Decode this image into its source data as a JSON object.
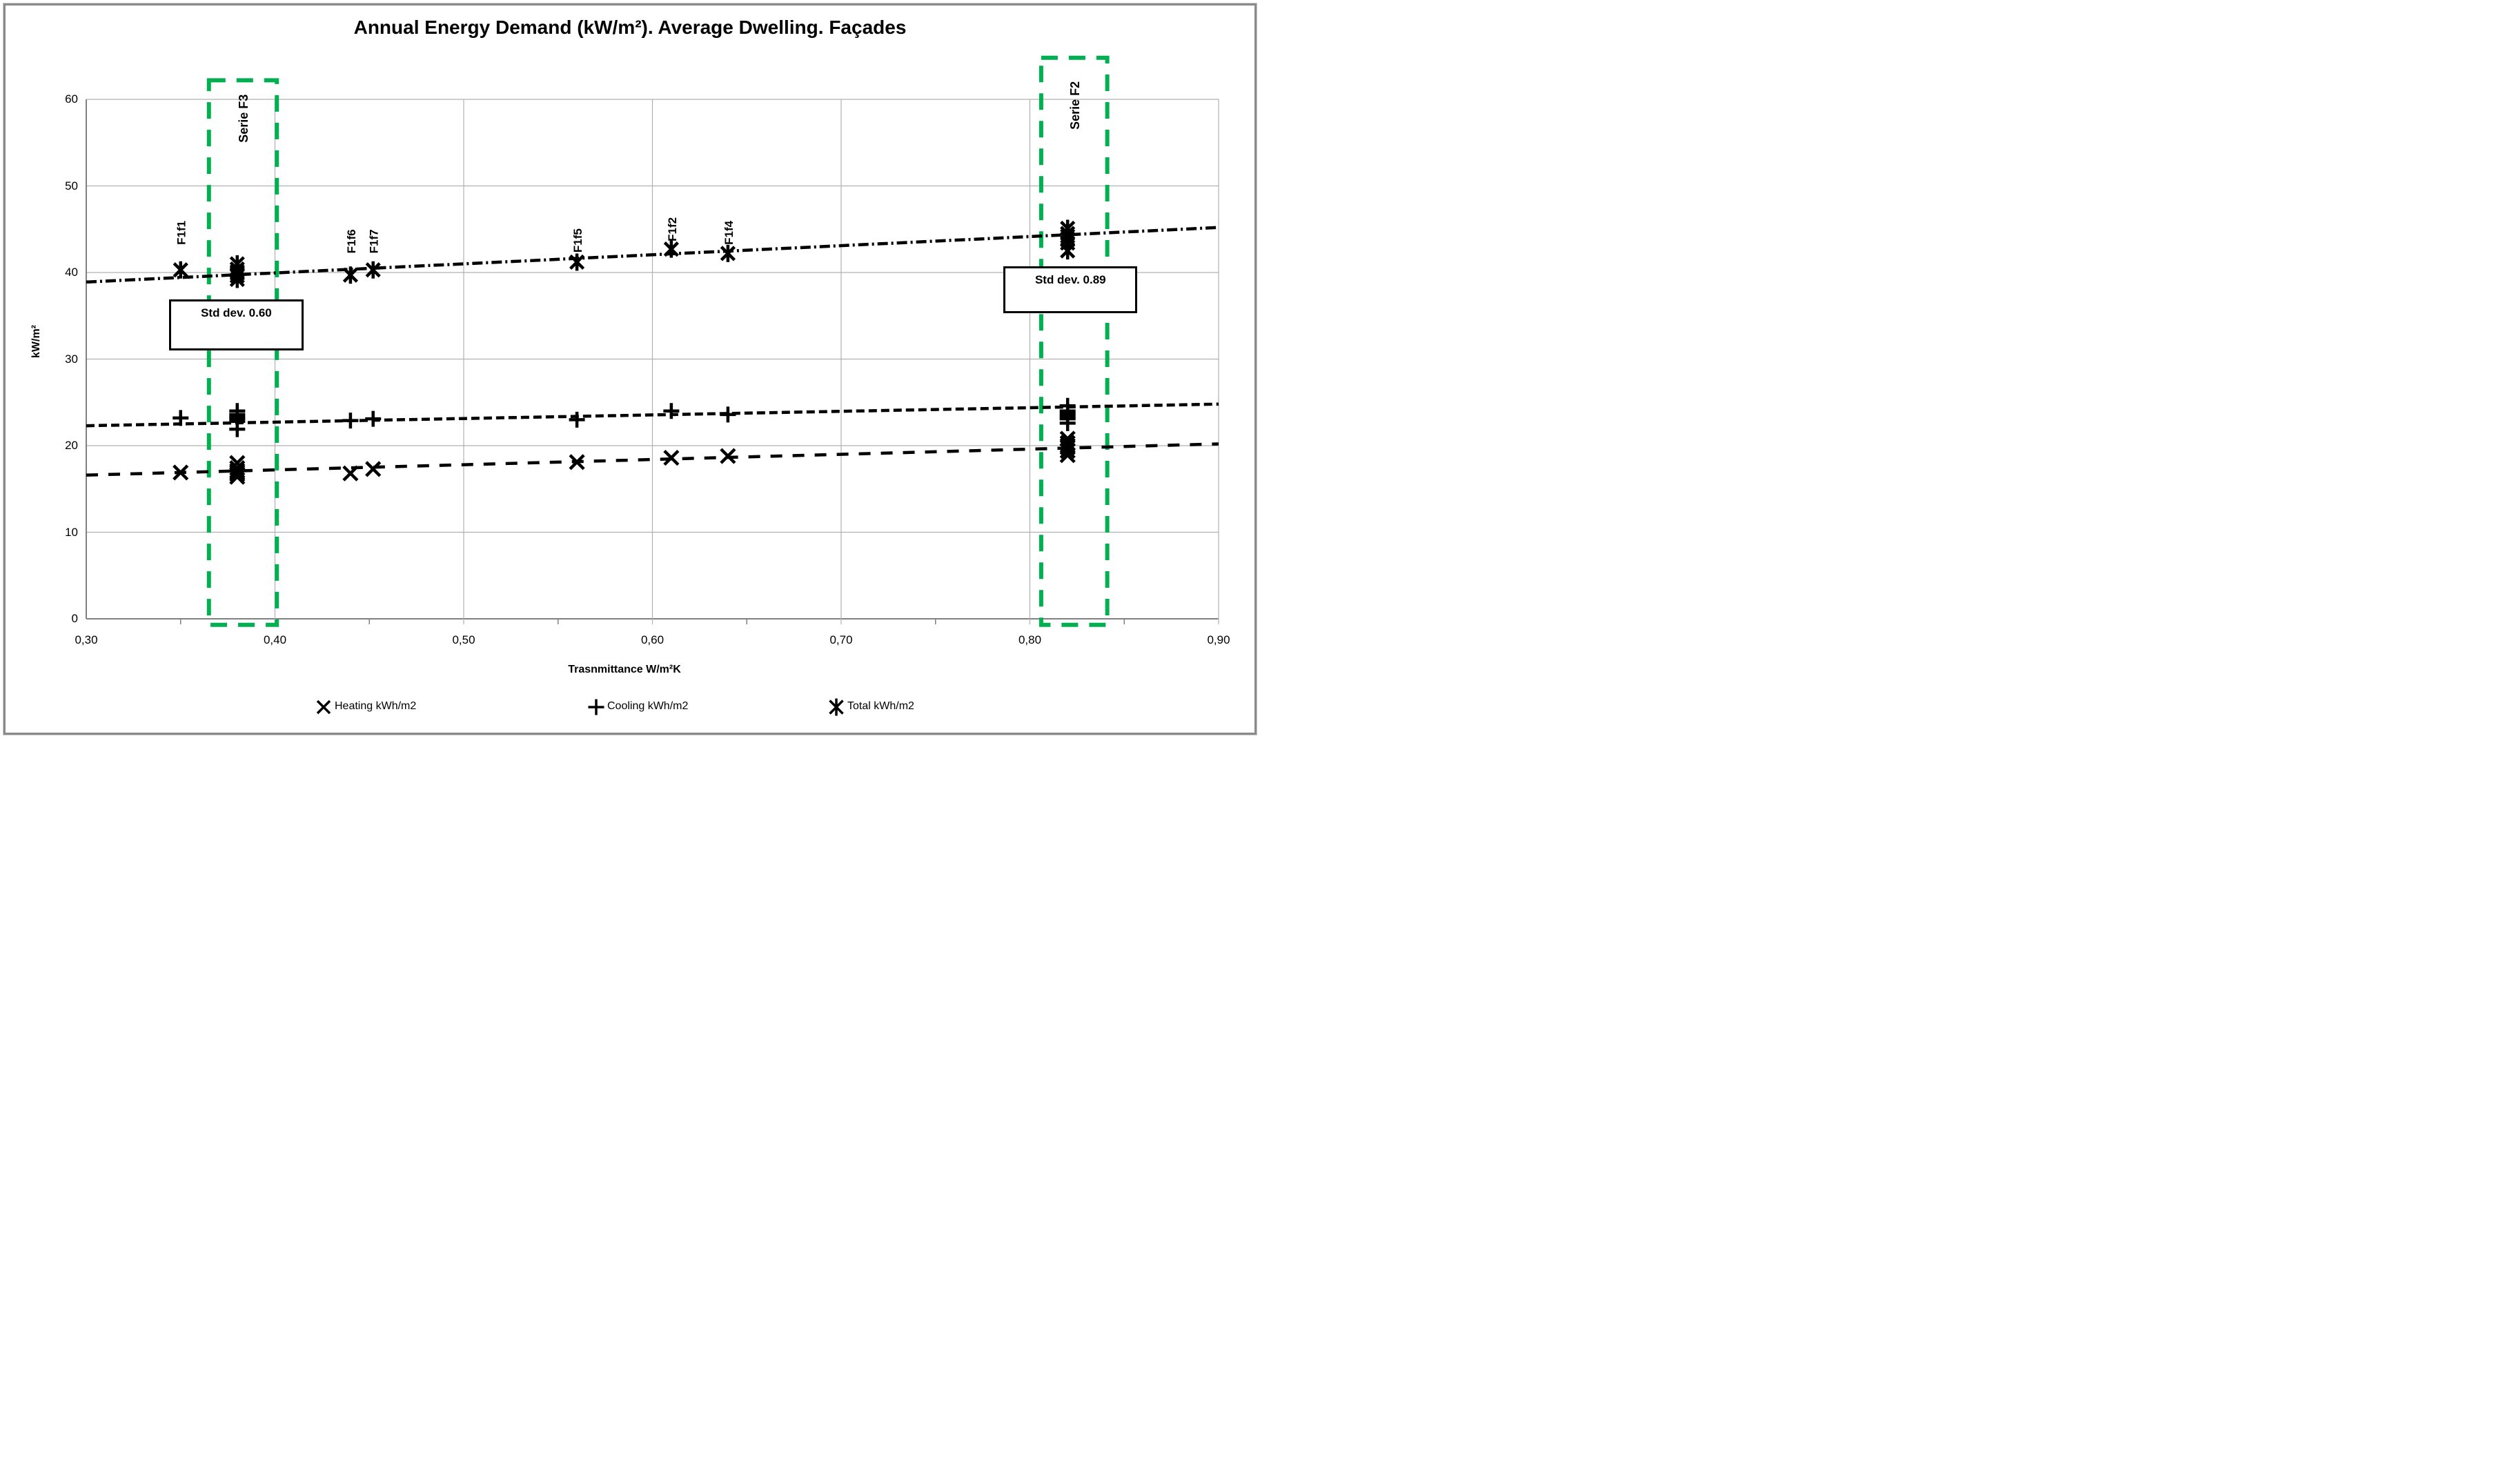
{
  "colors": {
    "marker": "#000000",
    "grid_minor": "#b0b0b0",
    "axis": "#808080",
    "accent_green": "#00B050",
    "frame": "#8a8a8a"
  },
  "chart_data": {
    "type": "scatter",
    "title": "Annual Energy Demand (kW/m²). Average Dwelling. Façades",
    "xlabel": "Trasnmittance W/m²K",
    "ylabel": "kW/m²",
    "xlim": [
      0.3,
      0.9
    ],
    "ylim": [
      0,
      60
    ],
    "grid": true,
    "legend_position": "bottom",
    "x_ticks": [
      {
        "v": 0.3,
        "label": "0,30"
      },
      {
        "v": 0.4,
        "label": "0,40"
      },
      {
        "v": 0.5,
        "label": "0,50"
      },
      {
        "v": 0.6,
        "label": "0,60"
      },
      {
        "v": 0.7,
        "label": "0,70"
      },
      {
        "v": 0.8,
        "label": "0,80"
      },
      {
        "v": 0.9,
        "label": "0,90"
      }
    ],
    "x_minor_ticks": [
      0.35,
      0.45,
      0.55,
      0.65,
      0.75,
      0.85
    ],
    "y_ticks": [
      {
        "v": 0,
        "label": "0"
      },
      {
        "v": 10,
        "label": "10"
      },
      {
        "v": 20,
        "label": "20"
      },
      {
        "v": 30,
        "label": "30"
      },
      {
        "v": 40,
        "label": "40"
      },
      {
        "v": 50,
        "label": "50"
      },
      {
        "v": 60,
        "label": "60"
      }
    ],
    "series": [
      {
        "name": "Heating kWh/m2",
        "marker": "x",
        "points": [
          [
            0.35,
            16.9
          ],
          [
            0.38,
            18.0
          ],
          [
            0.38,
            17.4
          ],
          [
            0.38,
            17.1
          ],
          [
            0.38,
            16.9
          ],
          [
            0.38,
            16.7
          ],
          [
            0.38,
            16.4
          ],
          [
            0.44,
            16.8
          ],
          [
            0.452,
            17.3
          ],
          [
            0.56,
            18.1
          ],
          [
            0.61,
            18.6
          ],
          [
            0.64,
            18.8
          ],
          [
            0.82,
            20.8
          ],
          [
            0.82,
            20.3
          ],
          [
            0.82,
            20.0
          ],
          [
            0.82,
            19.8
          ],
          [
            0.82,
            19.4
          ],
          [
            0.82,
            18.9
          ]
        ],
        "trend": {
          "start": [
            0.3,
            16.6
          ],
          "end": [
            0.9,
            20.2
          ],
          "style": "long-dash"
        }
      },
      {
        "name": "Cooling kWh/m2",
        "marker": "plus",
        "points": [
          [
            0.35,
            23.2
          ],
          [
            0.38,
            24.0
          ],
          [
            0.38,
            23.6
          ],
          [
            0.38,
            23.3
          ],
          [
            0.38,
            23.1
          ],
          [
            0.38,
            22.8
          ],
          [
            0.38,
            21.9
          ],
          [
            0.44,
            22.9
          ],
          [
            0.452,
            23.1
          ],
          [
            0.56,
            23.0
          ],
          [
            0.61,
            24.0
          ],
          [
            0.64,
            23.6
          ],
          [
            0.82,
            24.6
          ],
          [
            0.82,
            24.0
          ],
          [
            0.82,
            23.7
          ],
          [
            0.82,
            23.4
          ],
          [
            0.82,
            23.1
          ],
          [
            0.82,
            22.6
          ]
        ],
        "trend": {
          "start": [
            0.3,
            22.3
          ],
          "end": [
            0.9,
            24.8
          ],
          "style": "dash"
        }
      },
      {
        "name": "Total kWh/m2",
        "marker": "star",
        "points": [
          [
            0.35,
            40.3
          ],
          [
            0.38,
            41.0
          ],
          [
            0.38,
            40.4
          ],
          [
            0.38,
            40.1
          ],
          [
            0.38,
            39.9
          ],
          [
            0.38,
            39.6
          ],
          [
            0.38,
            39.2
          ],
          [
            0.44,
            39.7
          ],
          [
            0.452,
            40.3
          ],
          [
            0.56,
            41.2
          ],
          [
            0.61,
            42.7
          ],
          [
            0.64,
            42.2
          ],
          [
            0.82,
            45.1
          ],
          [
            0.82,
            44.5
          ],
          [
            0.82,
            44.2
          ],
          [
            0.82,
            43.9
          ],
          [
            0.82,
            43.4
          ],
          [
            0.82,
            42.5
          ]
        ],
        "trend": {
          "start": [
            0.3,
            38.9
          ],
          "end": [
            0.9,
            45.2
          ],
          "style": "dash-dot"
        }
      }
    ],
    "point_labels": [
      {
        "text": "F1f1",
        "x": 0.35,
        "y_bottom": 43.2
      },
      {
        "text": "F1f6",
        "x": 0.44,
        "y_bottom": 42.2
      },
      {
        "text": "F1f7",
        "x": 0.452,
        "y_bottom": 42.2
      },
      {
        "text": "F1f5",
        "x": 0.56,
        "y_bottom": 42.3
      },
      {
        "text": "F1f2",
        "x": 0.61,
        "y_bottom": 43.6
      },
      {
        "text": "F1f4",
        "x": 0.64,
        "y_bottom": 43.2
      }
    ],
    "series_boxes": [
      {
        "label": "Serie F3",
        "x_range": [
          0.365,
          0.401
        ],
        "y_range": [
          -0.7,
          62.2
        ],
        "label_y_bottom": 55.0
      },
      {
        "label": "Serie F2",
        "x_range": [
          0.806,
          0.841
        ],
        "y_range": [
          -0.7,
          64.8
        ],
        "label_y_bottom": 56.5
      }
    ],
    "stddev_boxes": [
      {
        "text": "Std dev. 0.60",
        "x_range": [
          0.344,
          0.415
        ],
        "y_range": [
          31.0,
          36.9
        ]
      },
      {
        "text": "Std dev. 0.89",
        "x_range": [
          0.786,
          0.857
        ],
        "y_range": [
          35.3,
          40.7
        ]
      }
    ]
  },
  "legend": {
    "items": [
      {
        "label": "Heating kWh/m2",
        "marker": "x"
      },
      {
        "label": "Cooling kWh/m2",
        "marker": "plus"
      },
      {
        "label": "Total kWh/m2",
        "marker": "star"
      }
    ]
  }
}
